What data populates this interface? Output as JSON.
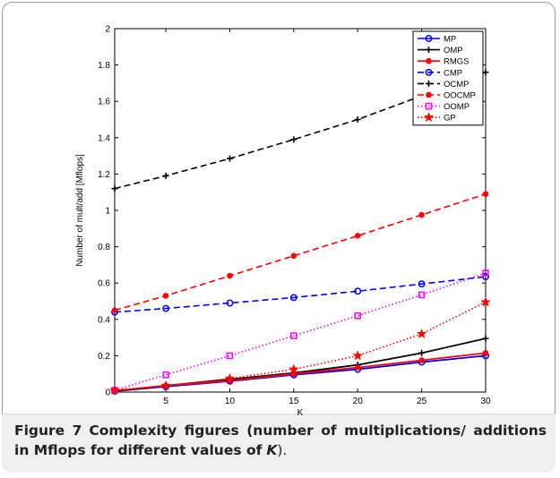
{
  "caption": {
    "label": "Figure 7",
    "text": "Complexity figures (number of multiplications/ additions in Mflops for different values of",
    "variable": "K",
    "end": ")."
  },
  "chart_data": {
    "type": "line",
    "title": "",
    "xlabel": "K",
    "ylabel": "Number of mult/add [Mflops]",
    "xlim": [
      1,
      30
    ],
    "ylim": [
      0,
      2
    ],
    "x_ticks": [
      5,
      10,
      15,
      20,
      25,
      30
    ],
    "y_ticks": [
      0,
      0.2,
      0.4,
      0.6,
      0.8,
      1,
      1.2,
      1.4,
      1.6,
      1.8,
      2
    ],
    "y_tick_labels": [
      "0",
      "0.2",
      "0.4",
      "0.6",
      "0.8",
      "1",
      "1.2",
      "1.4",
      "1.6",
      "1.8",
      "2"
    ],
    "grid": false,
    "legend_position": "top-right",
    "x": [
      1,
      5,
      10,
      15,
      20,
      25,
      30
    ],
    "series": [
      {
        "name": "MP",
        "color": "#0000ff",
        "dash": "solid",
        "marker": "circle-open",
        "values": [
          0.005,
          0.03,
          0.06,
          0.095,
          0.125,
          0.165,
          0.2
        ]
      },
      {
        "name": "OMP",
        "color": "#000000",
        "dash": "solid",
        "marker": "plus",
        "values": [
          0.005,
          0.035,
          0.07,
          0.105,
          0.15,
          0.215,
          0.295
        ]
      },
      {
        "name": "RMGS",
        "color": "#ff0000",
        "dash": "solid",
        "marker": "dot",
        "values": [
          0.008,
          0.035,
          0.063,
          0.1,
          0.135,
          0.175,
          0.215
        ]
      },
      {
        "name": "CMP",
        "color": "#0000ff",
        "dash": "dashed",
        "marker": "circle-open",
        "values": [
          0.44,
          0.46,
          0.49,
          0.52,
          0.555,
          0.595,
          0.635
        ]
      },
      {
        "name": "OCMP",
        "color": "#000000",
        "dash": "dashed",
        "marker": "plus",
        "values": [
          1.12,
          1.19,
          1.285,
          1.39,
          1.5,
          1.63,
          1.76
        ]
      },
      {
        "name": "OOCMP",
        "color": "#ff0000",
        "dash": "dashed",
        "marker": "dot",
        "values": [
          0.45,
          0.53,
          0.64,
          0.75,
          0.86,
          0.975,
          1.09
        ]
      },
      {
        "name": "OOMP",
        "color": "#ff00ff",
        "dash": "dotted",
        "marker": "square-open",
        "values": [
          0.01,
          0.095,
          0.2,
          0.31,
          0.42,
          0.535,
          0.655
        ]
      },
      {
        "name": "GP",
        "color": "#ff0000",
        "dash": "dotted",
        "marker": "star",
        "values": [
          0.01,
          0.035,
          0.075,
          0.125,
          0.2,
          0.32,
          0.495
        ]
      }
    ]
  }
}
